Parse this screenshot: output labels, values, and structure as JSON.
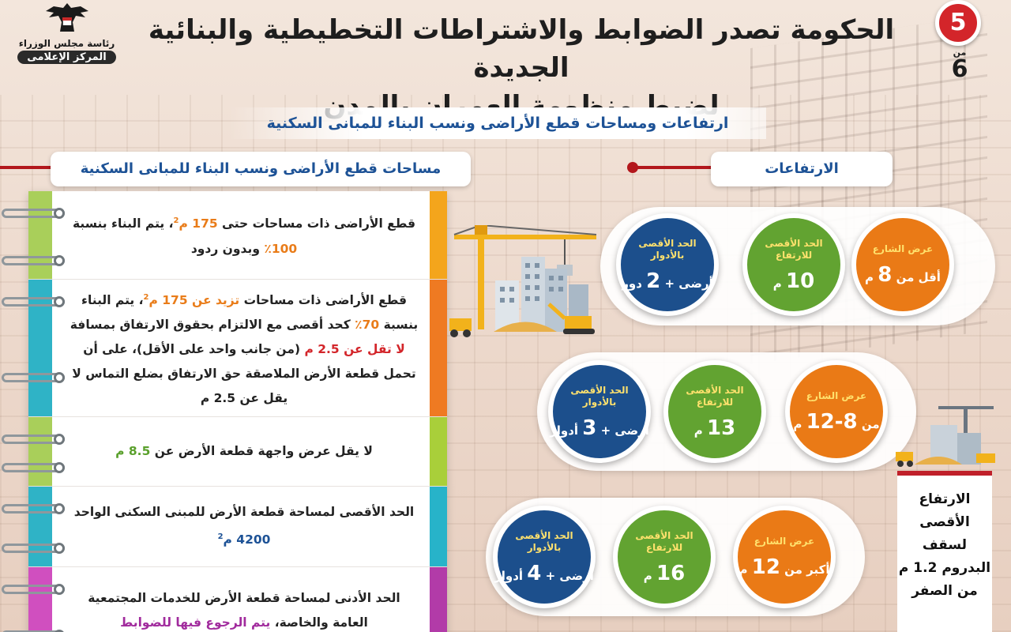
{
  "logo": {
    "line1": "رئاسة مجلس الوزراء",
    "line2": "المركز الإعلامى"
  },
  "page": {
    "current": "5",
    "of_label": "من",
    "total": "6"
  },
  "title": {
    "line1": "الحكومة تصدر الضوابط والاشتراطات التخطيطية والبنائية الجديدة",
    "line2": "لضبط منظومة العمران بالمدن"
  },
  "subtitle": "ارتفاعات ومساحات قطع الأراضى ونسب البناء للمبانى السكنية",
  "left_section": {
    "heading": "مساحات قطع الأراضى ونسب البناء للمبانى السكنية",
    "rows": [
      {
        "color": "#f4a51c",
        "spine": "#a9cf5a",
        "parts": [
          {
            "t": "قطع الأراضى ذات مساحات حتى "
          },
          {
            "t": "175 م",
            "c": "hl-o"
          },
          {
            "t": "2",
            "sup": true,
            "c": "hl-o"
          },
          {
            "t": "، يتم البناء بنسبة "
          },
          {
            "t": "100٪",
            "c": "hl-o"
          },
          {
            "t": " وبدون ردود"
          }
        ]
      },
      {
        "color": "#ef7a22",
        "spine": "#2fb3c6",
        "parts": [
          {
            "t": "قطع الأراضى ذات مساحات "
          },
          {
            "t": "تزيد عن 175 م",
            "c": "hl-o"
          },
          {
            "t": "2",
            "sup": true,
            "c": "hl-o"
          },
          {
            "t": "، يتم البناء بنسبة "
          },
          {
            "t": "70٪",
            "c": "hl-o"
          },
          {
            "t": " كحد أقصى مع الالتزام بحقوق الارتفاق بمسافة "
          },
          {
            "t": "لا تقل عن 2.5 م",
            "c": "hl-r"
          },
          {
            "t": " (من جانب واحد على الأقل)، على أن تحمل قطعة الأرض الملاصقة حق الارتفاق بضلع التماس لا يقل عن 2.5 م"
          }
        ]
      },
      {
        "color": "#a9cf3a",
        "spine": "#a9cf5a",
        "parts": [
          {
            "t": "لا يقل عرض واجهة قطعة الأرض عن "
          },
          {
            "t": "8.5 م",
            "c": "hl-g"
          }
        ]
      },
      {
        "color": "#27b3c9",
        "spine": "#2fb3c6",
        "parts": [
          {
            "t": "الحد الأقصى لمساحة قطعة الأرض للمبنى السكنى الواحد "
          },
          {
            "t": "4200 م",
            "c": "hl-b"
          },
          {
            "t": "2",
            "sup": true,
            "c": "hl-b"
          }
        ]
      },
      {
        "color": "#b23ba8",
        "spine": "#d04fbf",
        "parts": [
          {
            "t": "الحد الأدنى لمساحة قطعة الأرض للخدمات المجتمعية العامة والخاصة، "
          },
          {
            "t": "يتم الرجوع فيها للضوابط",
            "c": "hl-p"
          }
        ]
      }
    ]
  },
  "right_section": {
    "heading": "الارتفاعات",
    "groups": [
      {
        "street": {
          "label": "عرض الشارع",
          "prefix": "أقل من ",
          "num": "8",
          "suffix": " م"
        },
        "height": {
          "label": "الحد الأقصى للارتفاع",
          "prefix": "",
          "num": "10",
          "suffix": " م"
        },
        "floors": {
          "label": "الحد الأقصى بالأدوار",
          "prefix": "أرضى + ",
          "num": "2",
          "suffix": " دور"
        }
      },
      {
        "street": {
          "label": "عرض الشارع",
          "prefix": "من ",
          "num": "8-12",
          "suffix": " م"
        },
        "height": {
          "label": "الحد الأقصى للارتفاع",
          "prefix": "",
          "num": "13",
          "suffix": " م"
        },
        "floors": {
          "label": "الحد الأقصى بالأدوار",
          "prefix": "أرضى + ",
          "num": "3",
          "suffix": " أدوار"
        }
      },
      {
        "street": {
          "label": "عرض الشارع",
          "prefix": "أكبر من ",
          "num": "12",
          "suffix": " م"
        },
        "height": {
          "label": "الحد الأقصى للارتفاع",
          "prefix": "",
          "num": "16",
          "suffix": " م"
        },
        "floors": {
          "label": "الحد الأقصى بالأدوار",
          "prefix": "أرضى + ",
          "num": "4",
          "suffix": " أدوار"
        }
      }
    ]
  },
  "side_note": "الارتفاع الأقصى لسقف البدروم 1.2 م من الصفر",
  "colors": {
    "red": "#b3171c",
    "blue": "#1d5296",
    "orange": "#ea7a16",
    "green": "#62a331",
    "navy": "#1c4f8c"
  },
  "icons": [
    "egypt-eagle-emblem-icon",
    "construction-crane-icon",
    "excavator-icon",
    "bulldozer-icon"
  ]
}
